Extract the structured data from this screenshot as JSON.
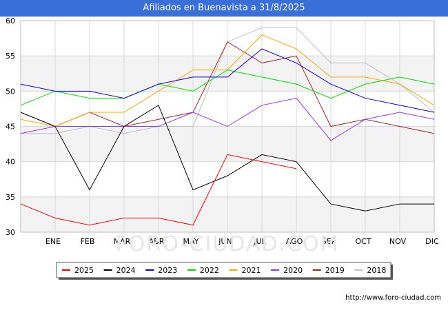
{
  "header": {
    "title": "Afiliados en Buenavista a 31/8/2025"
  },
  "footer": {
    "url": "http://www.foro-ciudad.com"
  },
  "watermark": "FORO-CIUDAD.COM",
  "chart_data": {
    "type": "line",
    "title": "Afiliados en Buenavista a 31/8/2025",
    "x_ticks": [
      "ENE",
      "FEB",
      "MAR",
      "ABR",
      "MAY",
      "JUN",
      "JUL",
      "AGO",
      "SEP",
      "OCT",
      "NOV",
      "DIC"
    ],
    "ylim": [
      30,
      60
    ],
    "y_ticks": [
      30,
      35,
      40,
      45,
      50,
      55,
      60
    ],
    "grid": true,
    "legend_position": "bottom",
    "series": [
      {
        "name": "2025",
        "color": "#ff0000",
        "values": [
          34,
          32,
          31,
          32,
          32,
          31,
          41,
          40,
          39
        ]
      },
      {
        "name": "2024",
        "color": "#000000",
        "values": [
          47,
          45,
          36,
          45,
          48,
          36,
          38,
          41,
          40,
          34,
          33,
          34,
          34
        ]
      },
      {
        "name": "2023",
        "color": "#0000ff",
        "values": [
          51,
          50,
          50,
          49,
          51,
          52,
          52,
          56,
          54,
          51,
          49,
          48,
          47
        ]
      },
      {
        "name": "2022",
        "color": "#00dd00",
        "values": [
          48,
          50,
          49,
          49,
          51,
          50,
          53,
          52,
          51,
          49,
          51,
          52,
          51
        ]
      },
      {
        "name": "2021",
        "color": "#ffa500",
        "values": [
          46,
          45,
          47,
          47,
          50,
          53,
          53,
          58,
          56,
          52,
          52,
          51,
          48
        ]
      },
      {
        "name": "2020",
        "color": "#9933ff",
        "values": [
          44,
          45,
          45,
          45,
          45,
          47,
          45,
          48,
          49,
          43,
          46,
          47,
          46
        ]
      },
      {
        "name": "2019",
        "color": "#aa2222",
        "values": [
          47,
          45,
          47,
          45,
          46,
          47,
          57,
          54,
          55,
          45,
          46,
          45,
          44
        ]
      },
      {
        "name": "2018",
        "color": "#c0c0c0",
        "values": [
          44,
          44,
          45,
          44,
          45,
          45,
          57,
          59,
          59,
          54,
          54,
          51,
          47
        ]
      }
    ]
  }
}
